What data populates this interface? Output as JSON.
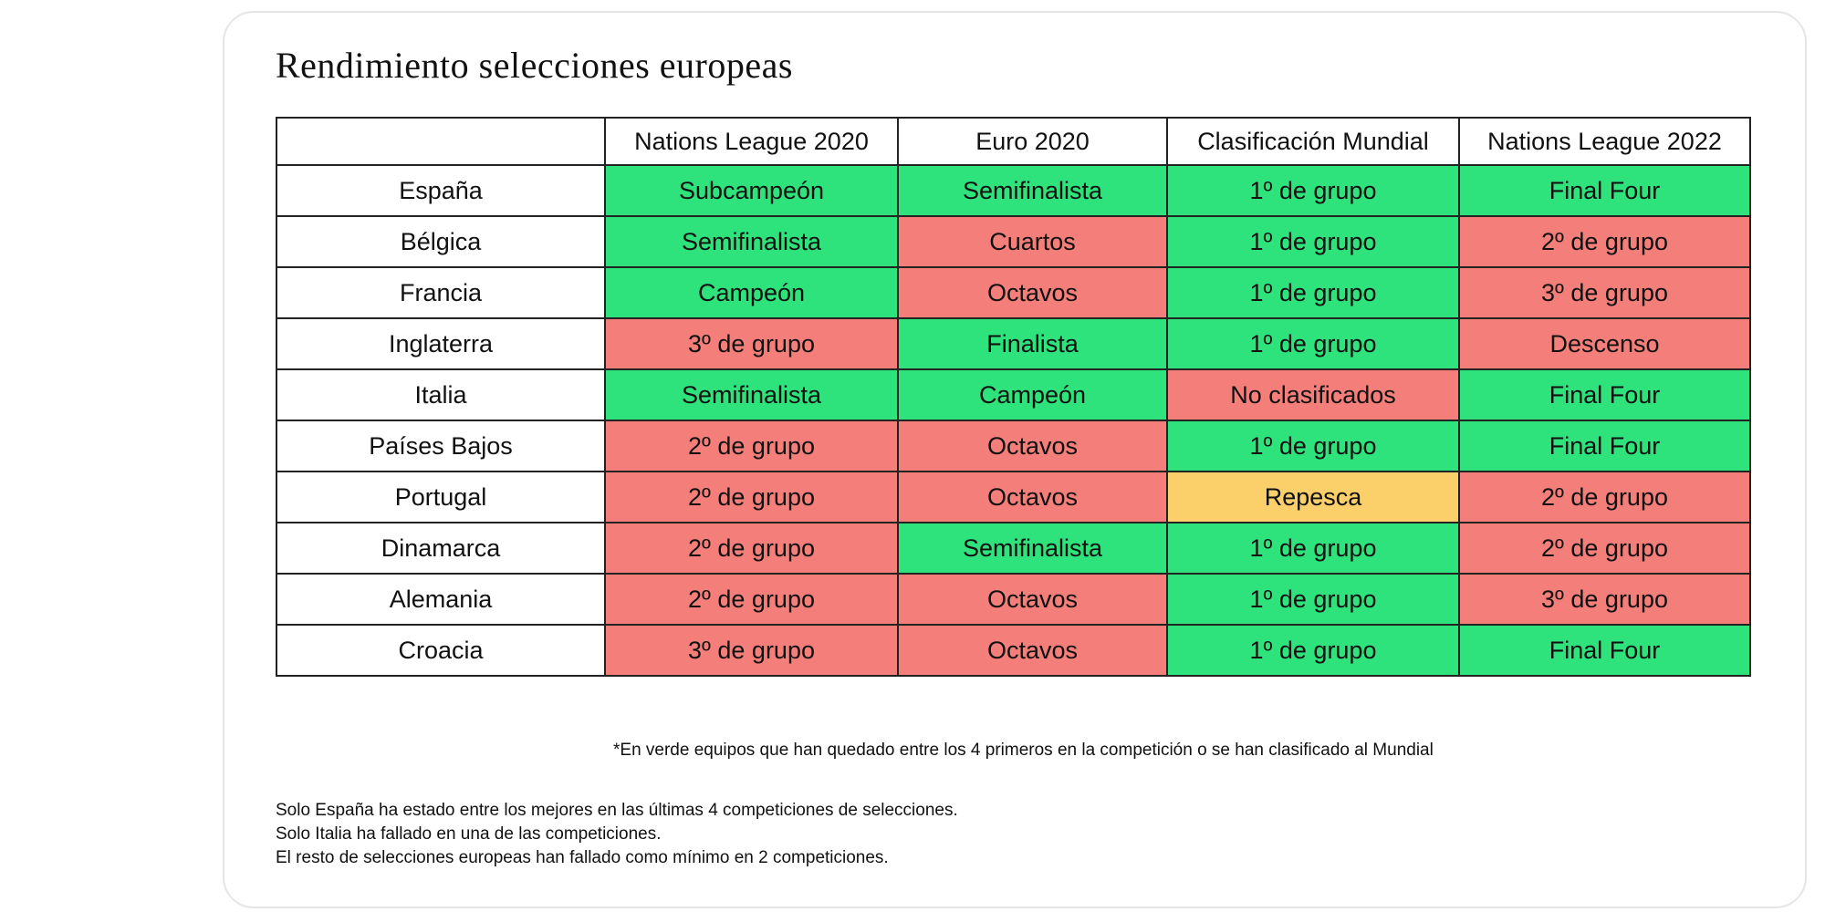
{
  "title": "Rendimiento selecciones europeas",
  "table": {
    "headers": [
      "",
      "Nations League 2020",
      "Euro 2020",
      "Clasificación Mundial",
      "Nations League 2022"
    ],
    "rows": [
      {
        "team": "España",
        "cells": [
          {
            "text": "Subcampeón",
            "status": "good"
          },
          {
            "text": "Semifinalista",
            "status": "good"
          },
          {
            "text": "1º de grupo",
            "status": "good"
          },
          {
            "text": "Final Four",
            "status": "good"
          }
        ]
      },
      {
        "team": "Bélgica",
        "cells": [
          {
            "text": "Semifinalista",
            "status": "good"
          },
          {
            "text": "Cuartos",
            "status": "bad"
          },
          {
            "text": "1º de grupo",
            "status": "good"
          },
          {
            "text": "2º de grupo",
            "status": "bad"
          }
        ]
      },
      {
        "team": "Francia",
        "cells": [
          {
            "text": "Campeón",
            "status": "good"
          },
          {
            "text": "Octavos",
            "status": "bad"
          },
          {
            "text": "1º de grupo",
            "status": "good"
          },
          {
            "text": "3º de grupo",
            "status": "bad"
          }
        ]
      },
      {
        "team": "Inglaterra",
        "cells": [
          {
            "text": "3º de grupo",
            "status": "bad"
          },
          {
            "text": "Finalista",
            "status": "good"
          },
          {
            "text": "1º de grupo",
            "status": "good"
          },
          {
            "text": "Descenso",
            "status": "bad"
          }
        ]
      },
      {
        "team": "Italia",
        "cells": [
          {
            "text": "Semifinalista",
            "status": "good"
          },
          {
            "text": "Campeón",
            "status": "good"
          },
          {
            "text": "No clasificados",
            "status": "bad"
          },
          {
            "text": "Final Four",
            "status": "good"
          }
        ]
      },
      {
        "team": "Países Bajos",
        "cells": [
          {
            "text": "2º de grupo",
            "status": "bad"
          },
          {
            "text": "Octavos",
            "status": "bad"
          },
          {
            "text": "1º de grupo",
            "status": "good"
          },
          {
            "text": "Final Four",
            "status": "good"
          }
        ]
      },
      {
        "team": "Portugal",
        "cells": [
          {
            "text": "2º de grupo",
            "status": "bad"
          },
          {
            "text": "Octavos",
            "status": "bad"
          },
          {
            "text": "Repesca",
            "status": "mid"
          },
          {
            "text": "2º de grupo",
            "status": "bad"
          }
        ]
      },
      {
        "team": "Dinamarca",
        "cells": [
          {
            "text": "2º de grupo",
            "status": "bad"
          },
          {
            "text": "Semifinalista",
            "status": "good"
          },
          {
            "text": "1º de grupo",
            "status": "good"
          },
          {
            "text": "2º de grupo",
            "status": "bad"
          }
        ]
      },
      {
        "team": "Alemania",
        "cells": [
          {
            "text": "2º de grupo",
            "status": "bad"
          },
          {
            "text": "Octavos",
            "status": "bad"
          },
          {
            "text": "1º de grupo",
            "status": "good"
          },
          {
            "text": "3º de grupo",
            "status": "bad"
          }
        ]
      },
      {
        "team": "Croacia",
        "cells": [
          {
            "text": "3º de grupo",
            "status": "bad"
          },
          {
            "text": "Octavos",
            "status": "bad"
          },
          {
            "text": "1º de grupo",
            "status": "good"
          },
          {
            "text": "Final Four",
            "status": "good"
          }
        ]
      }
    ]
  },
  "colors": {
    "good": "#2ee37c",
    "bad": "#f47f7a",
    "mid": "#fbd06a"
  },
  "footnote": "*En verde equipos que han quedado entre los 4 primeros en la competición o se han clasificado al Mundial",
  "summary": [
    "Solo España ha estado entre los mejores en las últimas 4 competiciones de selecciones.",
    "Solo Italia ha fallado en una de las competiciones.",
    "El resto de selecciones europeas han fallado como mínimo en 2 competiciones."
  ]
}
